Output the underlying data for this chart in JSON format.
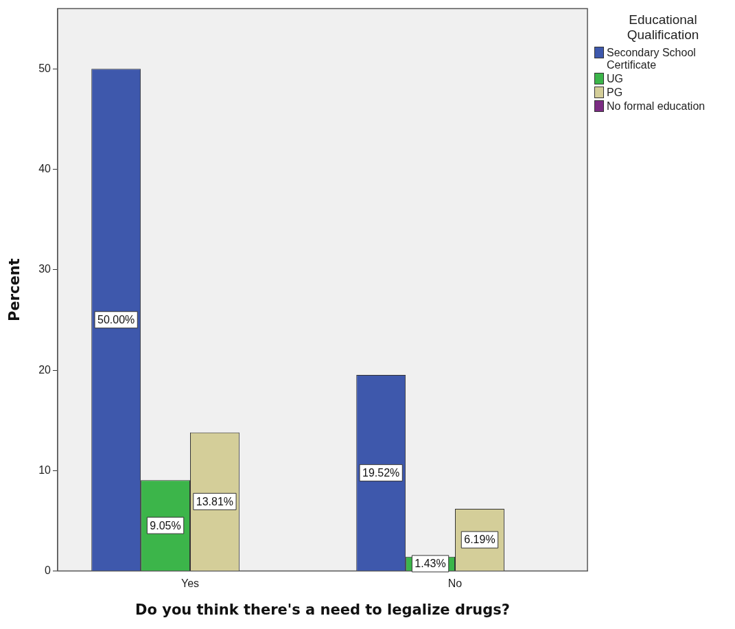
{
  "chart_data": {
    "type": "bar",
    "xlabel": "Do you think there's a need to legalize drugs?",
    "ylabel": "Percent",
    "legend_title": "Educational Qualification",
    "categories": [
      "Yes",
      "No"
    ],
    "series": [
      {
        "name": "Secondary School Certificate",
        "color": "#3e58ac",
        "values": [
          50.0,
          19.52
        ],
        "value_labels": [
          "50.00%",
          "19.52%"
        ]
      },
      {
        "name": "UG",
        "color": "#3cb54a",
        "values": [
          9.05,
          1.43
        ],
        "value_labels": [
          "9.05%",
          "1.43%"
        ]
      },
      {
        "name": "PG",
        "color": "#d4ce99",
        "values": [
          13.81,
          6.19
        ],
        "value_labels": [
          "13.81%",
          "6.19%"
        ]
      },
      {
        "name": "No formal education",
        "color": "#7b2c83",
        "values": [
          null,
          null
        ]
      }
    ],
    "ylim": [
      0,
      56
    ],
    "yticks": [
      0,
      10,
      20,
      30,
      40,
      50
    ],
    "grid": false,
    "legend": "right"
  }
}
